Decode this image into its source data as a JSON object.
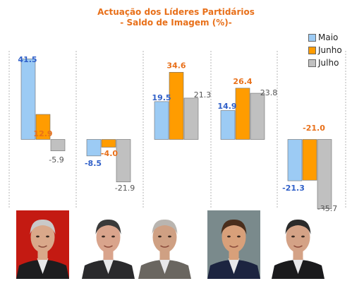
{
  "chart_data": {
    "type": "bar",
    "title": "Actuação dos Líderes Partidários",
    "subtitle": "- Saldo de Imagem (%)-",
    "legend_position": "top-right",
    "categories": [
      "",
      "",
      "",
      "",
      ""
    ],
    "series": [
      {
        "name": "Maio",
        "color": "#9ccbf4",
        "label_color": "#2f5fc8",
        "values": [
          41.5,
          -8.5,
          19.5,
          14.9,
          -21.3
        ]
      },
      {
        "name": "Junho",
        "color": "#ff9c00",
        "label_color": "#e8701a",
        "values": [
          12.9,
          -4.0,
          34.6,
          26.4,
          -21.0
        ]
      },
      {
        "name": "Julho",
        "color": "#c0c0c0",
        "label_color": "#555555",
        "values": [
          -5.9,
          -21.9,
          21.3,
          23.8,
          -35.7
        ]
      }
    ],
    "value_labels": [
      [
        "41.5",
        "12.9",
        "-5.9"
      ],
      [
        "-8.5",
        "-4.0",
        "-21.9"
      ],
      [
        "19.5",
        "34.6",
        "21.3"
      ],
      [
        "14.9",
        "26.4",
        "23.8"
      ],
      [
        "-21.3",
        "-21.0",
        "-35.7"
      ]
    ],
    "grid": false
  },
  "photos": [
    {
      "icon": "portrait-photo-1",
      "bg": "#c41a12",
      "suit": "#1d1d1f",
      "skin": "#d9a88a",
      "hair": "#c9c9c9"
    },
    {
      "icon": "portrait-photo-2",
      "bg": "#ffffff",
      "suit": "#2a2a2c",
      "skin": "#d9a48c",
      "hair": "#3a3a3a"
    },
    {
      "icon": "portrait-photo-3",
      "bg": "#ffffff",
      "suit": "#6a6660",
      "skin": "#cfa083",
      "hair": "#b9b5b0"
    },
    {
      "icon": "portrait-photo-4",
      "bg": "#7a8a8c",
      "suit": "#1c2440",
      "skin": "#d8a07a",
      "hair": "#4a2e1c"
    },
    {
      "icon": "portrait-photo-5",
      "bg": "#ffffff",
      "suit": "#1a1a1c",
      "skin": "#d4a286",
      "hair": "#2a2a2a"
    }
  ]
}
